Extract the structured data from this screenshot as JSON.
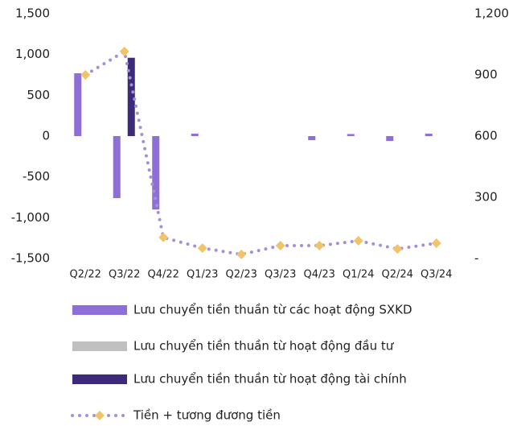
{
  "chart_data": {
    "type": "bar",
    "categories": [
      "Q2/22",
      "Q3/22",
      "Q4/22",
      "Q1/23",
      "Q2/23",
      "Q3/23",
      "Q4/23",
      "Q1/24",
      "Q2/24",
      "Q3/24"
    ],
    "series": [
      {
        "name": "Lưu chuyển tiền thuần từ các hoạt động SXKD",
        "type": "bar",
        "color": "#8e6fd8",
        "values": [
          770,
          -760,
          -900,
          30,
          0,
          0,
          -50,
          25,
          -60,
          30
        ]
      },
      {
        "name": "Lưu chuyển tiền thuần từ hoạt động đầu tư",
        "type": "bar",
        "color": "#c0c0c0",
        "values": [
          0,
          0,
          0,
          0,
          0,
          0,
          0,
          0,
          0,
          0
        ]
      },
      {
        "name": "Lưu chuyển tiền thuần từ hoạt động tài chính",
        "type": "bar",
        "color": "#3d2a7a",
        "values": [
          0,
          960,
          0,
          0,
          0,
          0,
          0,
          0,
          0,
          0
        ]
      },
      {
        "name": "Tiền + tương đương tiền",
        "type": "line",
        "axis": "y2",
        "color": "#a58fd9",
        "marker_color": "#f2c46a",
        "values": [
          900,
          1015,
          103,
          51,
          20,
          63,
          63,
          87,
          47,
          75
        ]
      }
    ],
    "ylim": [
      -1500,
      1500
    ],
    "yticks": [
      {
        "value": 1500,
        "label": "1,500"
      },
      {
        "value": 1000,
        "label": "1,000"
      },
      500,
      0,
      -500,
      {
        "value": -1000,
        "label": "-1,000"
      },
      {
        "value": -1500,
        "label": "-1,500"
      }
    ],
    "y2lim": [
      0,
      1200
    ],
    "y2ticks": [
      {
        "value": 1200,
        "label": "1,200"
      },
      900,
      600,
      300,
      {
        "value": 0,
        "label": "-"
      }
    ]
  }
}
